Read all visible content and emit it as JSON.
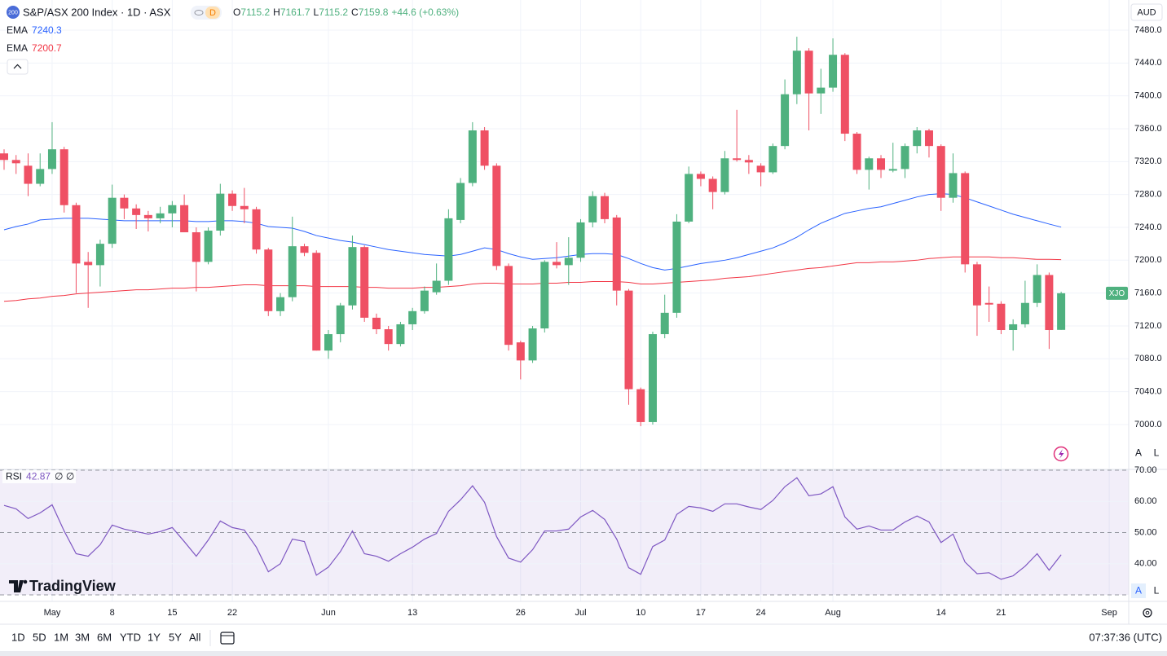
{
  "chart_data": [
    {
      "type": "candlestick",
      "categories": [
        null,
        null,
        null,
        null,
        "May",
        null,
        null,
        null,
        null,
        "8",
        null,
        null,
        null,
        null,
        "15",
        null,
        null,
        null,
        null,
        "22",
        null,
        null,
        null,
        null,
        null,
        null,
        null,
        "Jun",
        null,
        null,
        null,
        null,
        null,
        null,
        "13",
        null,
        null,
        null,
        null,
        null,
        null,
        null,
        null,
        "26",
        null,
        null,
        null,
        null,
        "Jul",
        null,
        null,
        null,
        null,
        "10",
        null,
        null,
        null,
        null,
        "17",
        null,
        null,
        null,
        null,
        "24",
        null,
        null,
        null,
        null,
        null,
        "Aug",
        null,
        null,
        null,
        null,
        null,
        null,
        null,
        null,
        "14",
        null,
        null,
        null,
        null,
        "21",
        null,
        null,
        null,
        null,
        null,
        null,
        null,
        null,
        "Sep"
      ],
      "open": [
        7330,
        7322,
        7315,
        7293,
        7311,
        7335,
        7267,
        7198,
        7194,
        7220,
        7276,
        7263,
        7255,
        7251,
        7257,
        7267,
        7234,
        7198,
        7236,
        7281,
        7266,
        7262,
        7213,
        7138,
        7155,
        7217,
        7209,
        7090,
        7110,
        7145,
        7216,
        7130,
        7116,
        7098,
        7122,
        7138,
        7161,
        7175,
        7249,
        7294,
        7358,
        7315,
        7193,
        7100,
        7078,
        7117,
        7198,
        7194,
        7203,
        7246,
        7278,
        7252,
        7163,
        7043,
        7003,
        7110,
        7136,
        7247,
        7305,
        7299,
        7283,
        7324,
        7322,
        7315,
        7307,
        7339,
        7402,
        7455,
        7403,
        7410,
        7450,
        7354,
        7310,
        7324,
        7309,
        7311,
        7339,
        7358,
        7339,
        7276,
        7306,
        7195,
        7148,
        7147,
        7115,
        7122,
        7148,
        7182,
        7115.2,
        null,
        null,
        null,
        null
      ],
      "high": [
        7335,
        7328,
        7330,
        7330,
        7368,
        7338,
        7270,
        7210,
        7225,
        7292,
        7280,
        7268,
        7260,
        7265,
        7272,
        7280,
        7240,
        7240,
        7293,
        7285,
        7288,
        7265,
        7215,
        7160,
        7253,
        7220,
        7212,
        7115,
        7148,
        7230,
        7218,
        7135,
        7120,
        7125,
        7142,
        7168,
        7196,
        7262,
        7300,
        7368,
        7362,
        7318,
        7196,
        7102,
        7120,
        7200,
        7222,
        7228,
        7250,
        7284,
        7282,
        7255,
        7165,
        7045,
        7113,
        7158,
        7256,
        7314,
        7308,
        7302,
        7333,
        7383,
        7328,
        7318,
        7342,
        7420,
        7472,
        7458,
        7433,
        7470,
        7452,
        7356,
        7326,
        7328,
        7343,
        7342,
        7362,
        7360,
        7341,
        7330,
        7308,
        7198,
        7168,
        7150,
        7128,
        7175,
        7195,
        7185,
        7161.7,
        null,
        null,
        null,
        null
      ],
      "low": [
        7310,
        7305,
        7278,
        7290,
        7305,
        7258,
        7160,
        7142,
        7168,
        7215,
        7250,
        7238,
        7235,
        7245,
        7240,
        7234,
        7162,
        7195,
        7230,
        7260,
        7245,
        7208,
        7132,
        7132,
        7150,
        7205,
        7090,
        7080,
        7100,
        7140,
        7125,
        7110,
        7090,
        7095,
        7115,
        7135,
        7158,
        7170,
        7245,
        7290,
        7310,
        7188,
        7090,
        7055,
        7075,
        7112,
        7190,
        7170,
        7198,
        7240,
        7245,
        7145,
        7024,
        6998,
        7000,
        7105,
        7130,
        7245,
        7290,
        7262,
        7280,
        7320,
        7305,
        7290,
        7305,
        7335,
        7390,
        7358,
        7378,
        7405,
        7345,
        7305,
        7286,
        7300,
        7307,
        7300,
        7330,
        7325,
        7260,
        7270,
        7185,
        7108,
        7125,
        7110,
        7090,
        7118,
        7143,
        7092,
        7115.2,
        null,
        null,
        null,
        null
      ],
      "close": [
        7322,
        7318,
        7293,
        7311,
        7335,
        7267,
        7196,
        7194,
        7220,
        7276,
        7263,
        7255,
        7251,
        7257,
        7267,
        7234,
        7198,
        7236,
        7281,
        7266,
        7262,
        7213,
        7138,
        7155,
        7217,
        7209,
        7090,
        7110,
        7145,
        7216,
        7130,
        7116,
        7098,
        7122,
        7138,
        7163,
        7175,
        7251,
        7294,
        7358,
        7315,
        7193,
        7097,
        7078,
        7117,
        7198,
        7194,
        7203,
        7246,
        7278,
        7250,
        7163,
        7043,
        7003,
        7110,
        7136,
        7247,
        7305,
        7299,
        7283,
        7324,
        7322,
        7319,
        7307,
        7339,
        7402,
        7455,
        7403,
        7410,
        7450,
        7354,
        7310,
        7324,
        7310,
        7311,
        7339,
        7358,
        7339,
        7276,
        7306,
        7195,
        7145,
        7146,
        7115,
        7122,
        7148,
        7182,
        7115,
        7159.8,
        null,
        null,
        null,
        null
      ],
      "up_color": "#4fb17f",
      "down_color": "#ef5064",
      "series": [
        {
          "name": "EMA",
          "color": "#2962ff",
          "values": [
            7237,
            7241,
            7244,
            7249,
            7250,
            7251,
            7251,
            7251,
            7250,
            7249,
            7248,
            7248,
            7248,
            7248,
            7248,
            7248,
            7247,
            7247,
            7248,
            7248,
            7247,
            7245,
            7241,
            7240,
            7239,
            7235,
            7230,
            7227,
            7224,
            7222,
            7219,
            7216,
            7213,
            7211,
            7209,
            7207,
            7206,
            7205,
            7207,
            7211,
            7215,
            7213,
            7208,
            7204,
            7201,
            7202,
            7203,
            7205,
            7207,
            7208,
            7208,
            7207,
            7202,
            7196,
            7191,
            7188,
            7190,
            7193,
            7196,
            7198,
            7200,
            7203,
            7207,
            7211,
            7215,
            7221,
            7228,
            7237,
            7245,
            7251,
            7257,
            7260,
            7263,
            7265,
            7269,
            7273,
            7277,
            7280,
            7281,
            7280,
            7276,
            7271,
            7266,
            7261,
            7256,
            7252,
            7248,
            7244,
            7240.3,
            null,
            null,
            null,
            null
          ]
        },
        {
          "name": "EMA",
          "color": "#f23645",
          "values": [
            7150,
            7151,
            7153,
            7154,
            7156,
            7157,
            7159,
            7160,
            7161,
            7162,
            7163,
            7164,
            7164,
            7165,
            7166,
            7166,
            7167,
            7167,
            7168,
            7169,
            7170,
            7170,
            7169,
            7169,
            7169,
            7169,
            7168,
            7168,
            7168,
            7168,
            7167,
            7167,
            7166,
            7166,
            7166,
            7167,
            7167,
            7168,
            7169,
            7171,
            7172,
            7172,
            7171,
            7171,
            7171,
            7172,
            7172,
            7173,
            7173,
            7174,
            7174,
            7174,
            7173,
            7171,
            7171,
            7172,
            7173,
            7174,
            7175,
            7176,
            7178,
            7179,
            7180,
            7182,
            7184,
            7186,
            7188,
            7190,
            7191,
            7193,
            7195,
            7197,
            7197,
            7198,
            7198,
            7199,
            7200,
            7202,
            7203,
            7204,
            7204,
            7204,
            7204,
            7203,
            7203,
            7202,
            7201,
            7201,
            7200.7,
            null,
            null,
            null,
            null
          ]
        }
      ],
      "ylim": [
        6946.4,
        7516.7
      ],
      "yticks": [
        {
          "value": 7000,
          "label": "7000.0"
        },
        {
          "value": 7040,
          "label": "7040.0"
        },
        {
          "value": 7080,
          "label": "7080.0"
        },
        {
          "value": 7120,
          "label": "7120.0"
        },
        {
          "value": 7160,
          "label": "7160.0"
        },
        {
          "value": 7200,
          "label": "7200.0"
        },
        {
          "value": 7240,
          "label": "7240.0"
        },
        {
          "value": 7280,
          "label": "7280.0"
        },
        {
          "value": 7320,
          "label": "7320.0"
        },
        {
          "value": 7360,
          "label": "7360.0"
        },
        {
          "value": 7400,
          "label": "7400.0"
        },
        {
          "value": 7440,
          "label": "7440.0"
        },
        {
          "value": 7480,
          "label": "7480.0"
        }
      ],
      "grid": true
    },
    {
      "type": "line",
      "title": "RSI",
      "color": "#7e57c2",
      "values": [
        58.7,
        57.6,
        54.5,
        56.3,
        58.9,
        50.5,
        43.2,
        42.4,
        46.1,
        52.4,
        51.1,
        50.3,
        49.5,
        50.3,
        51.6,
        47.1,
        42.4,
        47.6,
        53.7,
        51.6,
        50.8,
        45.3,
        37.4,
        40.0,
        47.9,
        47.1,
        36.3,
        38.9,
        43.9,
        50.5,
        43.2,
        42.4,
        40.8,
        43.2,
        45.3,
        47.9,
        49.7,
        56.8,
        60.5,
        65.0,
        59.7,
        48.7,
        41.8,
        40.5,
        44.5,
        50.5,
        50.5,
        51.1,
        55.0,
        57.1,
        54.2,
        47.9,
        38.7,
        36.6,
        45.5,
        47.6,
        55.8,
        58.4,
        57.9,
        56.8,
        59.2,
        59.2,
        58.2,
        57.4,
        60.3,
        64.7,
        67.6,
        61.8,
        62.4,
        64.7,
        55.0,
        51.1,
        52.1,
        50.8,
        50.8,
        53.4,
        55.3,
        53.4,
        46.8,
        49.5,
        40.5,
        36.8,
        37.1,
        35.0,
        36.1,
        39.2,
        43.2,
        37.9,
        42.87,
        null,
        null,
        null,
        null
      ],
      "ylim": [
        27.9,
        70
      ],
      "yticks": [
        {
          "value": 40,
          "label": "40.00"
        },
        {
          "value": 50,
          "label": "50.00"
        },
        {
          "value": 60,
          "label": "60.00"
        },
        {
          "value": 70,
          "label": "70.00"
        }
      ],
      "bands": [
        70,
        50,
        30
      ],
      "grid": true
    }
  ],
  "ui": {
    "header": {
      "badge": "200",
      "title": "S&P/ASX 200 Index · 1D · ASX",
      "interval_badge": "D",
      "open_label": "O",
      "high_label": "H",
      "low_label": "L",
      "close_label": "C",
      "change": "+44.6 (+0.63%)"
    },
    "currency": "AUD",
    "symbol_tag": "XJO",
    "scale_buttons": [
      "A",
      "L"
    ],
    "rsi_scale_buttons": [
      "A",
      "L"
    ],
    "rsi_legend_icons": "∅ ∅",
    "logo": "TradingView",
    "timeframes": [
      "1D",
      "5D",
      "1M",
      "3M",
      "6M",
      "YTD",
      "1Y",
      "5Y",
      "All"
    ],
    "clock": "07:37:36 (UTC)"
  }
}
